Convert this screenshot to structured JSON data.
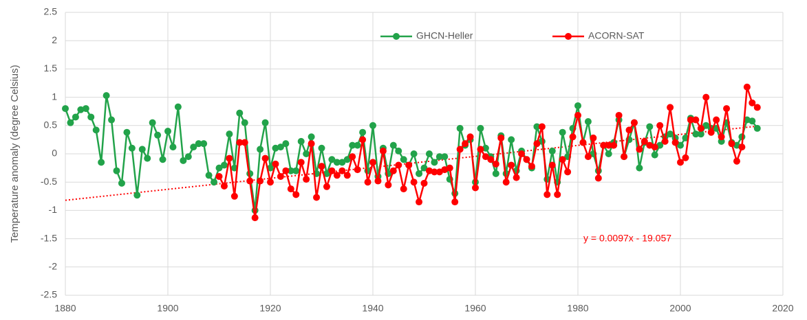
{
  "chart_data": {
    "type": "line",
    "y_label": "Temperature anomaly (degree Celsius)",
    "x": [
      1880,
      1881,
      1882,
      1883,
      1884,
      1885,
      1886,
      1887,
      1888,
      1889,
      1890,
      1891,
      1892,
      1893,
      1894,
      1895,
      1896,
      1897,
      1898,
      1899,
      1900,
      1901,
      1902,
      1903,
      1904,
      1905,
      1906,
      1907,
      1908,
      1909,
      1910,
      1911,
      1912,
      1913,
      1914,
      1915,
      1916,
      1917,
      1918,
      1919,
      1920,
      1921,
      1922,
      1923,
      1924,
      1925,
      1926,
      1927,
      1928,
      1929,
      1930,
      1931,
      1932,
      1933,
      1934,
      1935,
      1936,
      1937,
      1938,
      1939,
      1940,
      1941,
      1942,
      1943,
      1944,
      1945,
      1946,
      1947,
      1948,
      1949,
      1950,
      1951,
      1952,
      1953,
      1954,
      1955,
      1956,
      1957,
      1958,
      1959,
      1960,
      1961,
      1962,
      1963,
      1964,
      1965,
      1966,
      1967,
      1968,
      1969,
      1970,
      1971,
      1972,
      1973,
      1974,
      1975,
      1976,
      1977,
      1978,
      1979,
      1980,
      1981,
      1982,
      1983,
      1984,
      1985,
      1986,
      1987,
      1988,
      1989,
      1990,
      1991,
      1992,
      1993,
      1994,
      1995,
      1996,
      1997,
      1998,
      1999,
      2000,
      2001,
      2002,
      2003,
      2004,
      2005,
      2006,
      2007,
      2008,
      2009,
      2010,
      2011,
      2012,
      2013,
      2014,
      2015
    ],
    "series": [
      {
        "name": "GHCN-Heller",
        "color": "#22a34a",
        "values": [
          0.8,
          0.55,
          0.65,
          0.78,
          0.8,
          0.65,
          0.42,
          -0.15,
          1.03,
          0.6,
          -0.3,
          -0.52,
          0.38,
          0.1,
          -0.73,
          0.08,
          -0.08,
          0.55,
          0.33,
          -0.1,
          0.4,
          0.12,
          0.83,
          -0.12,
          -0.05,
          0.12,
          0.18,
          0.18,
          -0.38,
          -0.5,
          -0.25,
          -0.2,
          0.35,
          -0.25,
          0.72,
          0.55,
          -0.35,
          -1.0,
          0.08,
          0.55,
          -0.25,
          0.1,
          0.12,
          0.18,
          -0.3,
          -0.3,
          0.22,
          0.0,
          0.3,
          -0.35,
          0.1,
          -0.35,
          -0.1,
          -0.15,
          -0.15,
          -0.1,
          0.15,
          0.15,
          0.38,
          -0.3,
          0.5,
          -0.4,
          0.1,
          -0.35,
          0.15,
          0.05,
          -0.1,
          -0.2,
          0.0,
          -0.35,
          -0.25,
          0.0,
          -0.15,
          -0.05,
          -0.05,
          -0.45,
          -0.7,
          0.45,
          0.15,
          0.25,
          -0.5,
          0.45,
          0.1,
          -0.05,
          -0.35,
          0.32,
          -0.35,
          0.25,
          -0.3,
          0.05,
          -0.1,
          -0.25,
          0.48,
          0.22,
          -0.45,
          0.05,
          -0.5,
          0.38,
          -0.05,
          0.45,
          0.85,
          0.2,
          0.57,
          0.0,
          -0.3,
          0.15,
          0.0,
          0.2,
          0.6,
          -0.05,
          0.25,
          0.55,
          -0.25,
          0.2,
          0.48,
          -0.02,
          0.15,
          0.3,
          0.35,
          0.28,
          0.15,
          0.28,
          0.63,
          0.35,
          0.35,
          0.5,
          0.45,
          0.45,
          0.22,
          0.55,
          0.2,
          0.15,
          0.3,
          0.6,
          0.58,
          0.45
        ]
      },
      {
        "name": "ACORN-SAT",
        "color": "#ff0000",
        "values": [
          null,
          null,
          null,
          null,
          null,
          null,
          null,
          null,
          null,
          null,
          null,
          null,
          null,
          null,
          null,
          null,
          null,
          null,
          null,
          null,
          null,
          null,
          null,
          null,
          null,
          null,
          null,
          null,
          null,
          null,
          -0.4,
          -0.57,
          -0.08,
          -0.75,
          0.2,
          0.2,
          -0.48,
          -1.13,
          -0.48,
          -0.08,
          -0.5,
          -0.18,
          -0.4,
          -0.3,
          -0.62,
          -0.72,
          -0.15,
          -0.45,
          0.18,
          -0.77,
          -0.22,
          -0.58,
          -0.3,
          -0.38,
          -0.3,
          -0.38,
          -0.05,
          -0.28,
          0.25,
          -0.5,
          -0.15,
          -0.48,
          0.05,
          -0.55,
          -0.3,
          -0.2,
          -0.62,
          -0.2,
          -0.5,
          -0.85,
          -0.52,
          -0.3,
          -0.32,
          -0.32,
          -0.28,
          -0.25,
          -0.85,
          0.08,
          0.18,
          0.3,
          -0.6,
          0.08,
          -0.05,
          -0.1,
          -0.18,
          0.28,
          -0.5,
          -0.2,
          -0.42,
          0.0,
          -0.1,
          -0.22,
          0.18,
          0.48,
          -0.72,
          -0.2,
          -0.72,
          -0.1,
          -0.32,
          0.3,
          0.68,
          0.2,
          -0.05,
          0.28,
          -0.43,
          0.15,
          0.15,
          0.15,
          0.68,
          -0.05,
          0.42,
          0.55,
          0.08,
          0.22,
          0.15,
          0.12,
          0.5,
          0.22,
          0.82,
          0.2,
          -0.15,
          -0.07,
          0.6,
          0.6,
          0.45,
          1.0,
          0.38,
          0.6,
          0.3,
          0.8,
          0.18,
          -0.13,
          0.12,
          1.18,
          0.9,
          0.82
        ]
      }
    ],
    "trendline": {
      "label": "y = 0.0097x - 19.057",
      "slope": 0.0097,
      "intercept": -19.057,
      "color": "#ff0000",
      "x": [
        1880,
        2015
      ]
    },
    "xlim": [
      1880,
      2020
    ],
    "xticks": [
      1880,
      1900,
      1920,
      1940,
      1960,
      1980,
      2000,
      2020
    ],
    "ylim": [
      -2.5,
      2.5
    ],
    "yticks": [
      -2.5,
      -2,
      -1.5,
      -1,
      -0.5,
      0,
      0.5,
      1,
      1.5,
      2,
      2.5
    ],
    "grid": true
  }
}
